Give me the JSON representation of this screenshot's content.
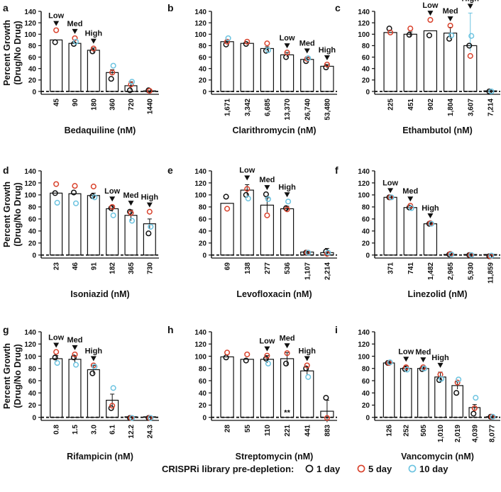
{
  "figure": {
    "legend_title": "CRISPRi library pre-depletion:",
    "legend_items": [
      {
        "label": "1 day",
        "color": "#111111"
      },
      {
        "label": "5 day",
        "color": "#d9412b"
      },
      {
        "label": "10 day",
        "color": "#6cc3e0"
      }
    ],
    "colors": {
      "bar_fill": "#ffffff",
      "bar_stroke": "#111111",
      "day1": "#111111",
      "day5": "#d9412b",
      "day10": "#6cc3e0"
    }
  },
  "chart_data": [
    {
      "id": "a",
      "panel_letter": "a",
      "type": "bar",
      "xlabel": "Bedaquiline (nM)",
      "ylabel": "Percent Growth",
      "ylabel2": "(Drug/No Drug)",
      "ylim": [
        -5,
        140
      ],
      "yticks": [
        "0",
        "20",
        "40",
        "60",
        "80",
        "100",
        "120",
        "140"
      ],
      "baseline_dashed": 0,
      "categories": [
        "45",
        "90",
        "180",
        "360",
        "720",
        "1440"
      ],
      "values": [
        90,
        84,
        72,
        33,
        10,
        1
      ],
      "errors": [
        0,
        0,
        4,
        5,
        7,
        0
      ],
      "series": [
        {
          "name": "1 day",
          "values": [
            86,
            83,
            70,
            22,
            2,
            2
          ]
        },
        {
          "name": "5 day",
          "values": [
            107,
            93,
            75,
            33,
            12,
            1
          ]
        },
        {
          "name": "10 day",
          "values": [
            null,
            87,
            null,
            45,
            17,
            null
          ]
        }
      ],
      "dose_markers": [
        {
          "index": 0,
          "label": "Low"
        },
        {
          "index": 1,
          "label": "Med"
        },
        {
          "index": 2,
          "label": "High"
        }
      ]
    },
    {
      "id": "b",
      "panel_letter": "b",
      "type": "bar",
      "xlabel": "Clarithromycin (nM)",
      "ylabel": "",
      "ylabel2": "",
      "ylim": [
        -5,
        140
      ],
      "yticks": [
        "0",
        "20",
        "40",
        "60",
        "80",
        "100",
        "120",
        "140"
      ],
      "baseline_dashed": 0,
      "categories": [
        "1,671",
        "3,342",
        "6,685",
        "13,370",
        "26,740",
        "53,480"
      ],
      "values": [
        87,
        84,
        75,
        64,
        56,
        44
      ],
      "errors": [
        2,
        0,
        3,
        4,
        3,
        3
      ],
      "series": [
        {
          "name": "1 day",
          "values": [
            82,
            83,
            71,
            60,
            53,
            42
          ]
        },
        {
          "name": "5 day",
          "values": [
            87,
            87,
            84,
            68,
            57,
            47
          ]
        },
        {
          "name": "10 day",
          "values": [
            93,
            null,
            72,
            null,
            58,
            null
          ]
        }
      ],
      "dose_markers": [
        {
          "index": 3,
          "label": "Low"
        },
        {
          "index": 4,
          "label": "Med"
        },
        {
          "index": 5,
          "label": "High"
        }
      ]
    },
    {
      "id": "c",
      "panel_letter": "c",
      "type": "bar",
      "xlabel": "Ethambutol (nM)",
      "ylabel": "",
      "ylabel2": "",
      "ylim": [
        -5,
        140
      ],
      "yticks": [
        "0",
        "20",
        "40",
        "60",
        "80",
        "100",
        "120",
        "140"
      ],
      "baseline_dashed": 0,
      "categories": [
        "225",
        "451",
        "902",
        "1,804",
        "3,607",
        "7,214"
      ],
      "values": [
        103,
        100,
        106,
        102,
        80,
        0
      ],
      "errors": [
        0,
        4,
        0,
        10,
        10,
        0
      ],
      "series": [
        {
          "name": "1 day",
          "values": [
            110,
            99,
            98,
            92,
            80,
            0
          ]
        },
        {
          "name": "5 day",
          "values": [
            103,
            110,
            125,
            115,
            62,
            null
          ]
        },
        {
          "name": "10 day",
          "values": [
            null,
            null,
            null,
            98,
            97,
            0
          ]
        }
      ],
      "error_outliers": [
        {
          "index": 4,
          "upper": 137
        }
      ],
      "dose_markers": [
        {
          "index": 2,
          "label": "Low"
        },
        {
          "index": 3,
          "label": "Med"
        },
        {
          "index": 4,
          "label": "High"
        }
      ]
    },
    {
      "id": "d",
      "panel_letter": "d",
      "type": "bar",
      "xlabel": "Isoniazid (nM)",
      "ylabel": "Percent Growth",
      "ylabel2": "(Drug/No Drug)",
      "ylim": [
        -5,
        140
      ],
      "yticks": [
        "0",
        "20",
        "40",
        "60",
        "80",
        "100",
        "120",
        "140"
      ],
      "baseline_dashed": 0,
      "categories": [
        "23",
        "46",
        "91",
        "182",
        "365",
        "730"
      ],
      "values": [
        103,
        102,
        99,
        77,
        66,
        52
      ],
      "errors": [
        0,
        0,
        4,
        5,
        9,
        8
      ],
      "series": [
        {
          "name": "1 day",
          "values": [
            103,
            104,
            98,
            78,
            72,
            36
          ]
        },
        {
          "name": "5 day",
          "values": [
            118,
            115,
            114,
            80,
            70,
            72
          ]
        },
        {
          "name": "10 day",
          "values": [
            87,
            86,
            96,
            66,
            57,
            47
          ]
        }
      ],
      "dose_markers": [
        {
          "index": 3,
          "label": "Low"
        },
        {
          "index": 4,
          "label": "Med"
        },
        {
          "index": 5,
          "label": "High"
        }
      ]
    },
    {
      "id": "e",
      "panel_letter": "e",
      "type": "bar",
      "xlabel": "Levofloxacin (nM)",
      "ylabel": "",
      "ylabel2": "",
      "ylim": [
        -5,
        140
      ],
      "yticks": [
        "0",
        "20",
        "40",
        "60",
        "80",
        "100",
        "120",
        "140"
      ],
      "baseline_dashed": 0,
      "categories": [
        "69",
        "138",
        "277",
        "536",
        "1,107",
        "2,214"
      ],
      "values": [
        86,
        108,
        83,
        77,
        5,
        4
      ],
      "errors": [
        0,
        9,
        12,
        4,
        3,
        7
      ],
      "series": [
        {
          "name": "1 day",
          "values": [
            97,
            100,
            101,
            78,
            4,
            6
          ]
        },
        {
          "name": "5 day",
          "values": [
            77,
            110,
            66,
            76,
            4,
            2
          ]
        },
        {
          "name": "10 day",
          "values": [
            null,
            94,
            93,
            89,
            4,
            4
          ]
        }
      ],
      "dose_markers": [
        {
          "index": 1,
          "label": "Low"
        },
        {
          "index": 2,
          "label": "Med"
        },
        {
          "index": 3,
          "label": "High"
        }
      ]
    },
    {
      "id": "f",
      "panel_letter": "f",
      "type": "bar",
      "xlabel": "Linezolid (nM)",
      "ylabel": "",
      "ylabel2": "",
      "ylim": [
        -5,
        140
      ],
      "yticks": [
        "0",
        "20",
        "40",
        "60",
        "80",
        "100",
        "120",
        "140"
      ],
      "baseline_dashed": 0,
      "categories": [
        "371",
        "741",
        "1,482",
        "2,965",
        "5,930",
        "11,859"
      ],
      "values": [
        96,
        79,
        52,
        1,
        0,
        -2
      ],
      "errors": [
        0,
        0,
        2,
        0,
        0,
        0
      ],
      "series": [
        {
          "name": "1 day",
          "values": [
            96,
            79,
            52,
            1,
            0,
            -2
          ]
        },
        {
          "name": "5 day",
          "values": [
            96,
            82,
            53,
            2,
            0,
            -2
          ]
        },
        {
          "name": "10 day",
          "values": [
            96,
            78,
            52,
            1,
            0,
            -1
          ]
        }
      ],
      "dose_markers": [
        {
          "index": 0,
          "label": "Low"
        },
        {
          "index": 1,
          "label": "Med"
        },
        {
          "index": 2,
          "label": "High"
        }
      ]
    },
    {
      "id": "g",
      "panel_letter": "g",
      "type": "bar",
      "xlabel": "Rifampicin (nM)",
      "ylabel": "Percent Growth",
      "ylabel2": "(Drug/No Drug)",
      "ylim": [
        -5,
        140
      ],
      "yticks": [
        "0",
        "20",
        "40",
        "60",
        "80",
        "100",
        "120",
        "140"
      ],
      "baseline_dashed": 0,
      "categories": [
        "0.8",
        "1.5",
        "3.0",
        "6.1",
        "12.2",
        "24.3"
      ],
      "values": [
        96,
        95,
        78,
        28,
        -1,
        -1
      ],
      "errors": [
        5,
        5,
        7,
        10,
        0,
        0
      ],
      "series": [
        {
          "name": "1 day",
          "values": [
            98,
            98,
            72,
            15,
            -1,
            -1
          ]
        },
        {
          "name": "5 day",
          "values": [
            107,
            103,
            85,
            19,
            -1,
            -1
          ]
        },
        {
          "name": "10 day",
          "values": [
            89,
            86,
            83,
            48,
            -1,
            -1
          ]
        }
      ],
      "dose_markers": [
        {
          "index": 0,
          "label": "Low"
        },
        {
          "index": 1,
          "label": "Med"
        },
        {
          "index": 2,
          "label": "High"
        }
      ]
    },
    {
      "id": "h",
      "panel_letter": "h",
      "type": "bar",
      "xlabel": "Streptomycin (nM)",
      "ylabel": "",
      "ylabel2": "",
      "ylim": [
        -5,
        140
      ],
      "yticks": [
        "0",
        "20",
        "40",
        "60",
        "80",
        "100",
        "120",
        "140"
      ],
      "baseline_dashed": 0,
      "categories": [
        "28",
        "55",
        "110",
        "221",
        "441",
        "883"
      ],
      "values": [
        99,
        95,
        95,
        96,
        76,
        10
      ],
      "errors": [
        0,
        0,
        6,
        10,
        6,
        18
      ],
      "series": [
        {
          "name": "1 day",
          "values": [
            98,
            93,
            96,
            88,
            80,
            32
          ]
        },
        {
          "name": "5 day",
          "values": [
            106,
            103,
            101,
            105,
            85,
            -1
          ]
        },
        {
          "name": "10 day",
          "values": [
            null,
            null,
            88,
            null,
            66,
            null
          ]
        }
      ],
      "annotations": [
        {
          "index": 3,
          "text": "**"
        }
      ],
      "dose_markers": [
        {
          "index": 2,
          "label": "Low"
        },
        {
          "index": 3,
          "label": "Med"
        },
        {
          "index": 4,
          "label": "High"
        }
      ]
    },
    {
      "id": "i",
      "panel_letter": "i",
      "type": "bar",
      "xlabel": "Vancomycin (nM)",
      "ylabel": "",
      "ylabel2": "",
      "ylim": [
        -5,
        140
      ],
      "yticks": [
        "0",
        "20",
        "40",
        "60",
        "80",
        "100",
        "120",
        "140"
      ],
      "baseline_dashed": 0,
      "categories": [
        "126",
        "252",
        "505",
        "1,010",
        "2,019",
        "4,039",
        "8,077"
      ],
      "values": [
        89,
        80,
        80,
        66,
        52,
        16,
        1
      ],
      "errors": [
        4,
        4,
        3,
        8,
        6,
        5,
        0
      ],
      "series": [
        {
          "name": "1 day",
          "values": [
            89,
            79,
            79,
            61,
            40,
            6,
            1
          ]
        },
        {
          "name": "5 day",
          "values": [
            89,
            82,
            82,
            70,
            57,
            15,
            1
          ]
        },
        {
          "name": "10 day",
          "values": [
            90,
            78,
            80,
            63,
            62,
            32,
            1
          ]
        }
      ],
      "dose_markers": [
        {
          "index": 1,
          "label": "Low"
        },
        {
          "index": 2,
          "label": "Med"
        },
        {
          "index": 3,
          "label": "High"
        }
      ]
    }
  ]
}
